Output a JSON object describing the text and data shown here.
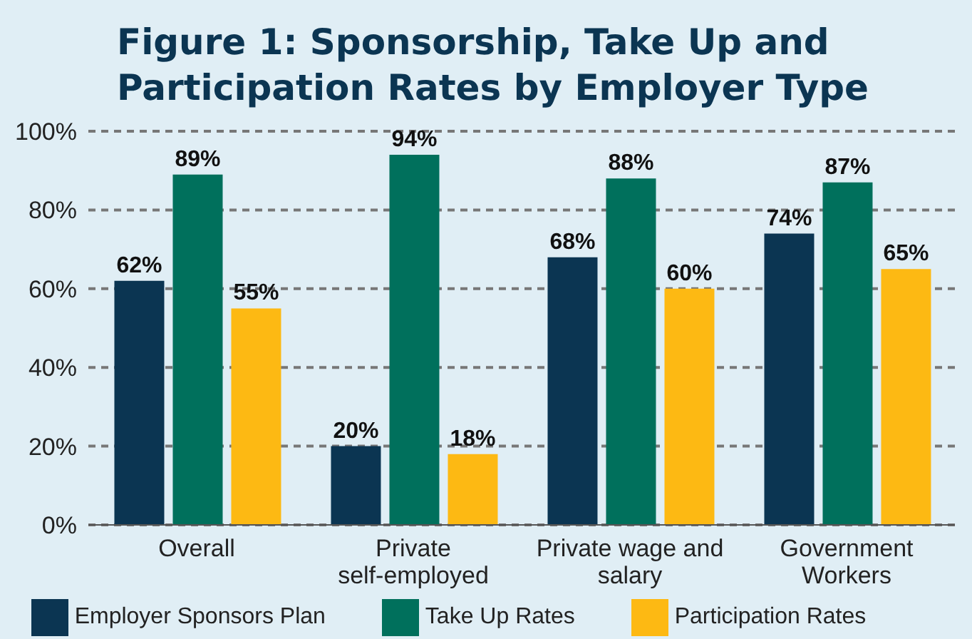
{
  "chart_data": {
    "type": "bar",
    "title": "Figure 1: Sponsorship, Take Up and Participation Rates by Employer Type",
    "categories": [
      "Overall",
      "Private self-employed",
      "Private wage and salary",
      "Government Workers"
    ],
    "series": [
      {
        "name": "Employer Sponsors Plan",
        "color": "#0b3552",
        "values": [
          62,
          20,
          68,
          74
        ],
        "value_labels": [
          "62%",
          "20%",
          "68%",
          "74%"
        ]
      },
      {
        "name": "Take Up Rates",
        "color": "#00705c",
        "values": [
          89,
          94,
          88,
          87
        ],
        "value_labels": [
          "89%",
          "94%",
          "88%",
          "87%"
        ]
      },
      {
        "name": "Participation Rates",
        "color": "#fdb913",
        "values": [
          55,
          18,
          60,
          65
        ],
        "value_labels": [
          "55%",
          "18%",
          "60%",
          "65%"
        ]
      }
    ],
    "ylim": [
      0,
      100
    ],
    "yticks": [
      {
        "value": 0,
        "label": "0%"
      },
      {
        "value": 20,
        "label": "20%"
      },
      {
        "value": 40,
        "label": "40%"
      },
      {
        "value": 60,
        "label": "60%"
      },
      {
        "value": 80,
        "label": "80%"
      },
      {
        "value": 100,
        "label": "100%"
      }
    ],
    "grid": "y",
    "legend": "bottom"
  }
}
